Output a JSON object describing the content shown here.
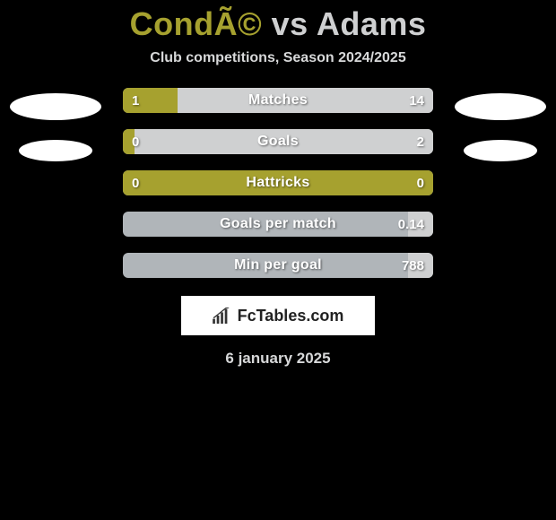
{
  "title": {
    "player1": "CondÃ©",
    "vs": "vs",
    "player2": "Adams"
  },
  "subtitle": "Club competitions, Season 2024/2025",
  "colors": {
    "player1": "#a6a12f",
    "player2": "#cfd0d1",
    "bar_bg": "#b0b5b9"
  },
  "bars": [
    {
      "label": "Matches",
      "left_val": "1",
      "right_val": "14",
      "left_pct": 17.5,
      "right_pct": 82.5
    },
    {
      "label": "Goals",
      "left_val": "0",
      "right_val": "2",
      "left_pct": 3.8,
      "right_pct": 96.2
    },
    {
      "label": "Hattricks",
      "left_val": "0",
      "right_val": "0",
      "left_pct": 100,
      "right_pct": 0
    },
    {
      "label": "Goals per match",
      "left_val": "",
      "right_val": "0.14",
      "left_pct": 0,
      "right_pct": 8
    },
    {
      "label": "Min per goal",
      "left_val": "",
      "right_val": "788",
      "left_pct": 0,
      "right_pct": 8
    }
  ],
  "bar_style": {
    "height": 28,
    "radius": 6,
    "label_fontsize": 16,
    "val_fontsize": 15
  },
  "avatars": {
    "left": {
      "big": true,
      "small": true
    },
    "right": {
      "big": true,
      "small": true
    }
  },
  "logo": {
    "text": "FcTables.com"
  },
  "date": "6 january 2025"
}
